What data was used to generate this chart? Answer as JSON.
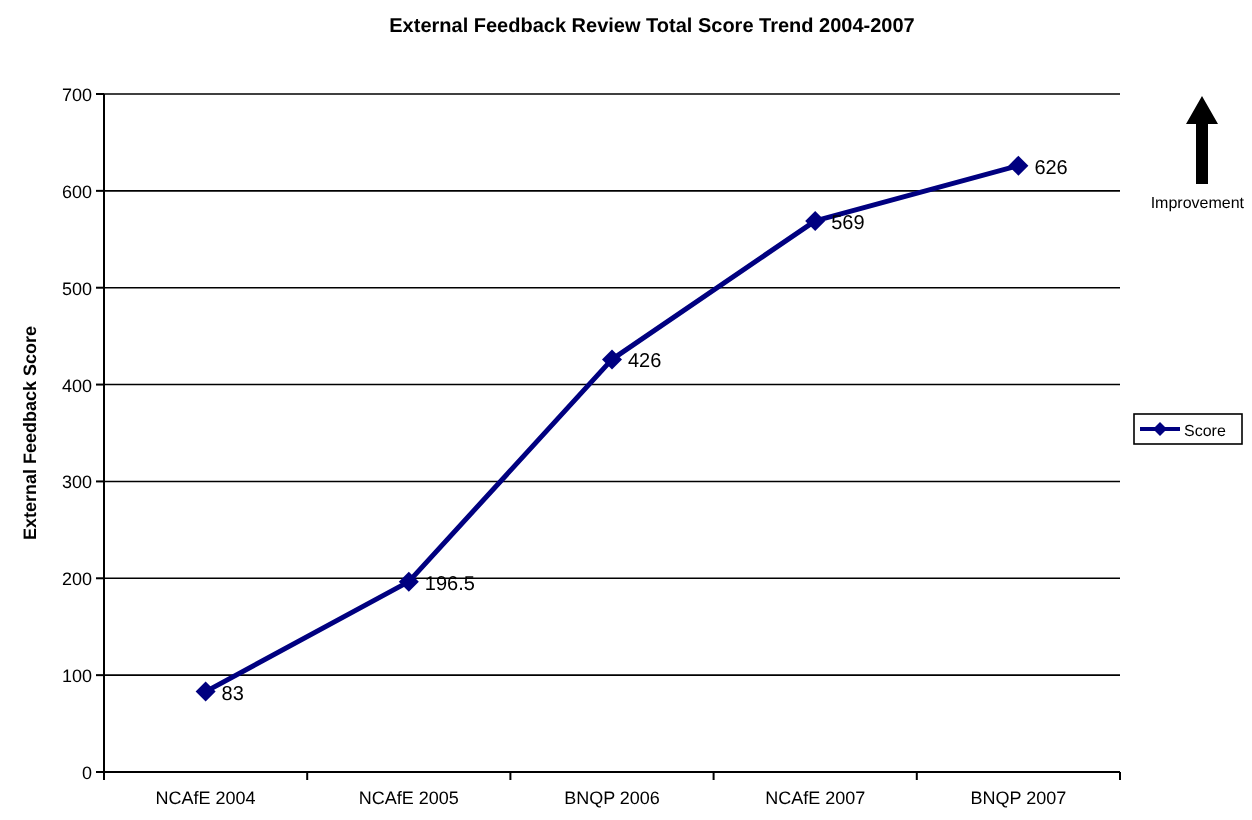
{
  "chart_data": {
    "type": "line",
    "title": "External Feedback Review Total Score Trend 2004-2007",
    "ylabel": "External Feedback Score",
    "categories": [
      "NCAfE 2004",
      "NCAfE 2005",
      "BNQP 2006",
      "NCAfE 2007",
      "BNQP 2007"
    ],
    "series": [
      {
        "name": "Score",
        "color": "#000080",
        "values": [
          83,
          196.5,
          426,
          569,
          626
        ]
      }
    ],
    "ylim": [
      0,
      700
    ],
    "yticks": [
      0,
      100,
      200,
      300,
      400,
      500,
      600,
      700
    ],
    "grid": "y",
    "legend": "right",
    "marker": "diamond",
    "line_style": "solid",
    "data_labels": true,
    "annotations": [
      "Improvement"
    ]
  }
}
